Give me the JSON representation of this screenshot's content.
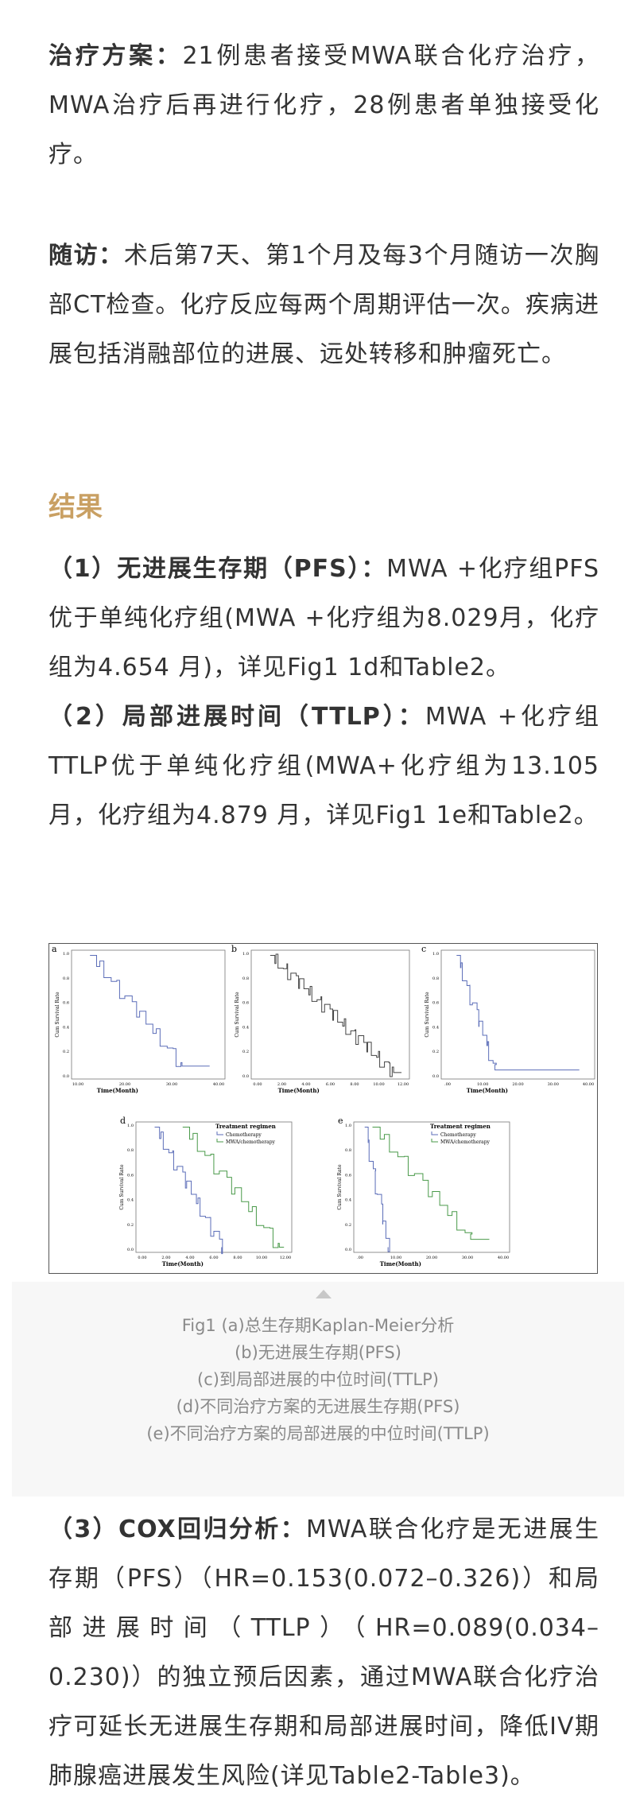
{
  "paragraphs": [
    {
      "bold": "治疗方案：",
      "text": "21例患者接受MWA联合化疗治疗，MWA治疗后再进行化疗，28例患者单独接受化疗。"
    },
    {
      "bold": "随访：",
      "text": "术后第7天、第1个月及每3个月随访一次胸部CT检查。化疗反应每两个周期评估一次。疾病进展包括消融部位的进展、远处转移和肿瘤死亡。"
    }
  ],
  "heading": "结果",
  "results": [
    {
      "bold": "（1）无进展生存期（PFS）：",
      "text": "MWA +化疗组PFS优于单纯化疗组(MWA +化疗组为8.029月，化疗组为4.654 月)，详见Fig1 1d和Table2。"
    },
    {
      "bold": "（2）局部进展时间（TTLP）：",
      "text": "MWA +化疗组TTLP优于单纯化疗组(MWA+化疗组为13.105 月，化疗组为4.879 月，详见Fig1 1e和Table2。"
    }
  ],
  "figure": {
    "panels": [
      {
        "label": "a",
        "y_label": "Cum Survival Rate",
        "x_label": "Time(Month)",
        "x_ticks": [
          "10.00",
          "20.00",
          "30.00",
          "40.00"
        ],
        "y_ticks": [
          "0.0",
          "0.2",
          "0.4",
          "0.6",
          "0.8",
          "1.0"
        ]
      },
      {
        "label": "b",
        "y_label": "Cum Survival Rate",
        "x_label": "Time(Month)",
        "x_ticks": [
          "0.00",
          "2.00",
          "4.00",
          "6.00",
          "8.00",
          "10.00",
          "12.00"
        ],
        "y_ticks": [
          "0.0",
          "0.2",
          "0.4",
          "0.6",
          "0.8",
          "1.0"
        ]
      },
      {
        "label": "c",
        "y_label": "Cum Survival Rate",
        "x_label": "Time(Month)",
        "x_ticks": [
          ".00",
          "10.00",
          "20.00",
          "30.00",
          "40.00"
        ],
        "y_ticks": [
          "0.0",
          "0.2",
          "0.4",
          "0.6",
          "0.8",
          "1.0"
        ]
      },
      {
        "label": "d",
        "y_label": "Cum Survival Rate",
        "x_label": "Time(Month)",
        "x_ticks": [
          "0.00",
          "2.00",
          "4.00",
          "6.00",
          "8.00",
          "10.00",
          "12.00"
        ],
        "y_ticks": [
          "0.0",
          "0.2",
          "0.4",
          "0.6",
          "0.8",
          "1.0"
        ]
      },
      {
        "label": "e",
        "y_label": "Cum Survival Rate",
        "x_label": "Time(Month)",
        "x_ticks": [
          ".00",
          "10.00",
          "20.00",
          "30.00",
          "40.00"
        ],
        "y_ticks": [
          "0.0",
          "0.2",
          "0.4",
          "0.6",
          "0.8",
          "1.0"
        ]
      }
    ],
    "legend": {
      "title": "Treatment regimen",
      "items": [
        "Chemotherapy",
        "MWA/chemotherapy"
      ]
    },
    "caption": [
      "Fig1 (a)总生存期Kaplan-Meier分析",
      "(b)无进展生存期(PFS)",
      "(c)到局部进展的中位时间(TTLP)",
      "(d)不同治疗方案的无进展生存期(PFS)",
      "(e)不同治疗方案的局部进展的中位时间(TTLP)"
    ]
  },
  "conclusion": {
    "bold": "（3）COX回归分析：",
    "text": "MWA联合化疗是无进展生存期（PFS）（HR=0.153(0.072–0.326)）和局部进展时间（TTLP）（HR=0.089(0.034–0.230)）的独立预后因素，通过MWA联合化疗治疗可延长无进展生存期和局部进展时间，降低IV期肺腺癌进展发生风险(详见Table2-Table3)。"
  }
}
